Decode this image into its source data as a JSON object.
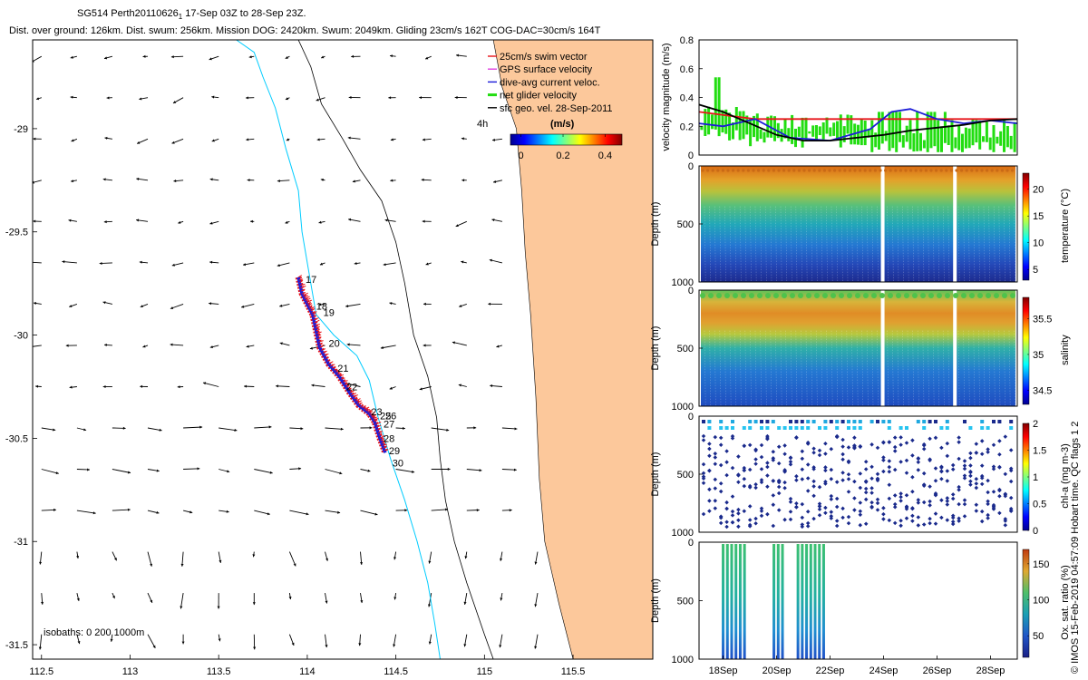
{
  "header": {
    "line1_prefix": "SG514 Perth20110626",
    "line1_sub": "1",
    "line1_suffix": " 17-Sep 03Z to 28-Sep 23Z.",
    "line2": "Dist. over ground: 126km. Dist. swum: 256km. Mission DOG: 2420km. Swum: 2049km. Gliding 23cm/s 162T COG-DAC=30cm/s 164T"
  },
  "copyright": "© IMOS 15-Feb-2019 04:57:09 Hobart time. QC flags 1  2",
  "colors": {
    "land": "#fcc89b",
    "isobath_200": "#00ccff",
    "isobath_1000": "#000000",
    "swim": "#e8141a",
    "gps": "#e040e0",
    "dac": "#1c1cd8",
    "net": "#22dd11",
    "sfc": "#000000",
    "track_red": "#e8141a",
    "track_blue": "#1c1cd8"
  },
  "chart_data": [
    {
      "id": "map",
      "type": "scatter",
      "xlim": [
        112.45,
        115.95
      ],
      "ylim": [
        -31.57,
        -28.57
      ],
      "x_ticks": [
        "112.5",
        "113",
        "113.5",
        "114",
        "114.5",
        "115",
        "115.5"
      ],
      "x_tick_values": [
        112.5,
        113,
        113.5,
        114,
        114.5,
        115,
        115.5
      ],
      "y_ticks": [
        "-29",
        "-29.5",
        "-30",
        "-30.5",
        "-31",
        "-31.5"
      ],
      "y_tick_values": [
        -29,
        -29.5,
        -30,
        -30.5,
        -31,
        -31.5
      ],
      "isobath_label": "isobaths: 0   200  1000m",
      "legend": [
        {
          "label": "25cm/s swim vector",
          "color": "#e8141a"
        },
        {
          "label": "GPS surface velocity",
          "color": "#e040e0"
        },
        {
          "label": "dive-avg current veloc.",
          "color": "#1c1cd8"
        },
        {
          "label": "net glider velocity",
          "color": "#22dd11"
        },
        {
          "label": "sfc geo. vel. 28-Sep-2011",
          "color": "#000000"
        }
      ],
      "legend_time": "4h",
      "colorbar_unit": "(m/s)",
      "colorbar_ticks": [
        "0",
        "0.2",
        "0.4"
      ],
      "colorbar_tick_values": [
        0,
        0.2,
        0.4
      ],
      "colorbar_range": [
        -0.05,
        0.48
      ],
      "day_labels": [
        {
          "text": "17",
          "lon": 113.97,
          "lat": -29.73
        },
        {
          "text": "18",
          "lon": 114.03,
          "lat": -29.86
        },
        {
          "text": "19",
          "lon": 114.07,
          "lat": -29.89
        },
        {
          "text": "20",
          "lon": 114.1,
          "lat": -30.04
        },
        {
          "text": "21",
          "lon": 114.15,
          "lat": -30.16
        },
        {
          "text": "22",
          "lon": 114.2,
          "lat": -30.25
        },
        {
          "text": "23",
          "lon": 114.34,
          "lat": -30.37
        },
        {
          "text": "25",
          "lon": 114.39,
          "lat": -30.39
        },
        {
          "text": "26",
          "lon": 114.42,
          "lat": -30.39
        },
        {
          "text": "27",
          "lon": 114.41,
          "lat": -30.43
        },
        {
          "text": "28",
          "lon": 114.41,
          "lat": -30.5
        },
        {
          "text": "29",
          "lon": 114.44,
          "lat": -30.56
        },
        {
          "text": "30",
          "lon": 114.46,
          "lat": -30.62
        }
      ],
      "track": [
        [
          113.95,
          -29.72
        ],
        [
          113.97,
          -29.8
        ],
        [
          114.0,
          -29.85
        ],
        [
          114.03,
          -29.9
        ],
        [
          114.05,
          -29.98
        ],
        [
          114.07,
          -30.06
        ],
        [
          114.12,
          -30.14
        ],
        [
          114.18,
          -30.2
        ],
        [
          114.24,
          -30.28
        ],
        [
          114.29,
          -30.34
        ],
        [
          114.35,
          -30.38
        ],
        [
          114.38,
          -30.42
        ],
        [
          114.41,
          -30.5
        ],
        [
          114.44,
          -30.57
        ]
      ],
      "coast": [
        [
          115.05,
          -28.57
        ],
        [
          115.1,
          -28.8
        ],
        [
          115.18,
          -29.0
        ],
        [
          115.21,
          -29.3
        ],
        [
          115.23,
          -29.6
        ],
        [
          115.26,
          -29.9
        ],
        [
          115.29,
          -30.3
        ],
        [
          115.31,
          -30.7
        ],
        [
          115.34,
          -31.0
        ],
        [
          115.42,
          -31.3
        ],
        [
          115.5,
          -31.57
        ]
      ],
      "iso200": [
        [
          113.6,
          -28.57
        ],
        [
          113.7,
          -28.63
        ],
        [
          113.75,
          -28.75
        ],
        [
          113.82,
          -28.9
        ],
        [
          113.88,
          -29.1
        ],
        [
          113.95,
          -29.3
        ],
        [
          113.97,
          -29.5
        ],
        [
          114.02,
          -29.75
        ],
        [
          114.05,
          -29.9
        ],
        [
          114.15,
          -30.0
        ],
        [
          114.28,
          -30.1
        ],
        [
          114.35,
          -30.22
        ],
        [
          114.4,
          -30.4
        ],
        [
          114.47,
          -30.6
        ],
        [
          114.55,
          -30.8
        ],
        [
          114.62,
          -31.0
        ],
        [
          114.68,
          -31.2
        ],
        [
          114.72,
          -31.4
        ],
        [
          114.75,
          -31.57
        ]
      ],
      "iso1000": [
        [
          113.95,
          -28.57
        ],
        [
          114.02,
          -28.7
        ],
        [
          114.08,
          -28.88
        ],
        [
          114.2,
          -29.05
        ],
        [
          114.3,
          -29.2
        ],
        [
          114.42,
          -29.35
        ],
        [
          114.5,
          -29.55
        ],
        [
          114.55,
          -29.75
        ],
        [
          114.6,
          -30.0
        ],
        [
          114.68,
          -30.2
        ],
        [
          114.73,
          -30.4
        ],
        [
          114.75,
          -30.6
        ],
        [
          114.78,
          -30.8
        ],
        [
          114.83,
          -31.0
        ],
        [
          114.9,
          -31.2
        ],
        [
          115.0,
          -31.45
        ],
        [
          115.05,
          -31.57
        ]
      ]
    },
    {
      "id": "velocity",
      "type": "line",
      "ylabel": "velocity magnitude (m/s)",
      "ylim": [
        0,
        0.8
      ],
      "y_ticks": [
        "0",
        "0.2",
        "0.4",
        "0.6",
        "0.8"
      ],
      "y_tick_values": [
        0,
        0.2,
        0.4,
        0.6,
        0.8
      ],
      "xlim": [
        17.1,
        29.0
      ],
      "series": [
        {
          "color": "#e8141a",
          "x": [
            17.1,
            19.2,
            29.0
          ],
          "y": [
            0.3,
            0.25,
            0.25
          ]
        },
        {
          "color": "#1c1cd8",
          "x": [
            17.1,
            18.0,
            19.2,
            20.5,
            22.0,
            23.5,
            24.3,
            25.0,
            26.0,
            27.0,
            28.0,
            29.0
          ],
          "y": [
            0.22,
            0.2,
            0.25,
            0.12,
            0.1,
            0.18,
            0.3,
            0.32,
            0.25,
            0.22,
            0.24,
            0.22
          ]
        },
        {
          "color": "#000000",
          "x": [
            17.1,
            18.0,
            19.0,
            20.0,
            21.0,
            22.0,
            23.0,
            24.0,
            25.0,
            26.0,
            27.0,
            28.0,
            29.0
          ],
          "y": [
            0.35,
            0.3,
            0.22,
            0.14,
            0.1,
            0.1,
            0.12,
            0.14,
            0.17,
            0.19,
            0.21,
            0.24,
            0.25
          ]
        }
      ]
    },
    {
      "id": "temperature",
      "type": "heatmap",
      "ylabel": "Depth (m)",
      "ylim": [
        0,
        1000
      ],
      "y_ticks": [
        "0",
        "500",
        "1000"
      ],
      "y_tick_values": [
        0,
        500,
        1000
      ],
      "colorbar_label": "temperature (°C)",
      "colorbar_ticks": [
        "5",
        "10",
        "15",
        "20"
      ],
      "colorbar_tick_values": [
        5,
        10,
        15,
        20
      ],
      "clim": [
        3,
        23
      ]
    },
    {
      "id": "salinity",
      "type": "heatmap",
      "ylabel": "Depth (m)",
      "ylim": [
        0,
        1000
      ],
      "y_ticks": [
        "0",
        "500",
        "1000"
      ],
      "y_tick_values": [
        0,
        500,
        1000
      ],
      "colorbar_label": "salinity",
      "colorbar_ticks": [
        "34.5",
        "35",
        "35.5"
      ],
      "colorbar_tick_values": [
        34.5,
        35,
        35.5
      ],
      "clim": [
        34.3,
        35.8
      ]
    },
    {
      "id": "chla",
      "type": "heatmap",
      "ylabel": "Depth (m)",
      "ylim": [
        0,
        1000
      ],
      "y_ticks": [
        "0",
        "500",
        "1000"
      ],
      "y_tick_values": [
        0,
        500,
        1000
      ],
      "colorbar_label": "chl-a (mg m-3)",
      "colorbar_ticks": [
        "0",
        "0.5",
        "1",
        "1.5",
        "2"
      ],
      "colorbar_tick_values": [
        0,
        0.5,
        1,
        1.5,
        2
      ],
      "clim": [
        0,
        2
      ]
    },
    {
      "id": "oxygen",
      "type": "heatmap",
      "ylabel": "Depth (m)",
      "ylim": [
        0,
        1000
      ],
      "y_ticks": [
        "0",
        "500",
        "1000"
      ],
      "y_tick_values": [
        0,
        500,
        1000
      ],
      "colorbar_label": "Ox. sat. ratio (%)",
      "colorbar_ticks": [
        "50",
        "100",
        "150"
      ],
      "colorbar_tick_values": [
        50,
        100,
        150
      ],
      "clim": [
        20,
        170
      ],
      "x_ticks": [
        "18Sep",
        "20Sep",
        "22Sep",
        "24Sep",
        "26Sep",
        "28Sep"
      ],
      "x_tick_values": [
        18,
        20,
        22,
        24,
        26,
        28
      ],
      "xlim": [
        17.1,
        29.0
      ]
    }
  ]
}
